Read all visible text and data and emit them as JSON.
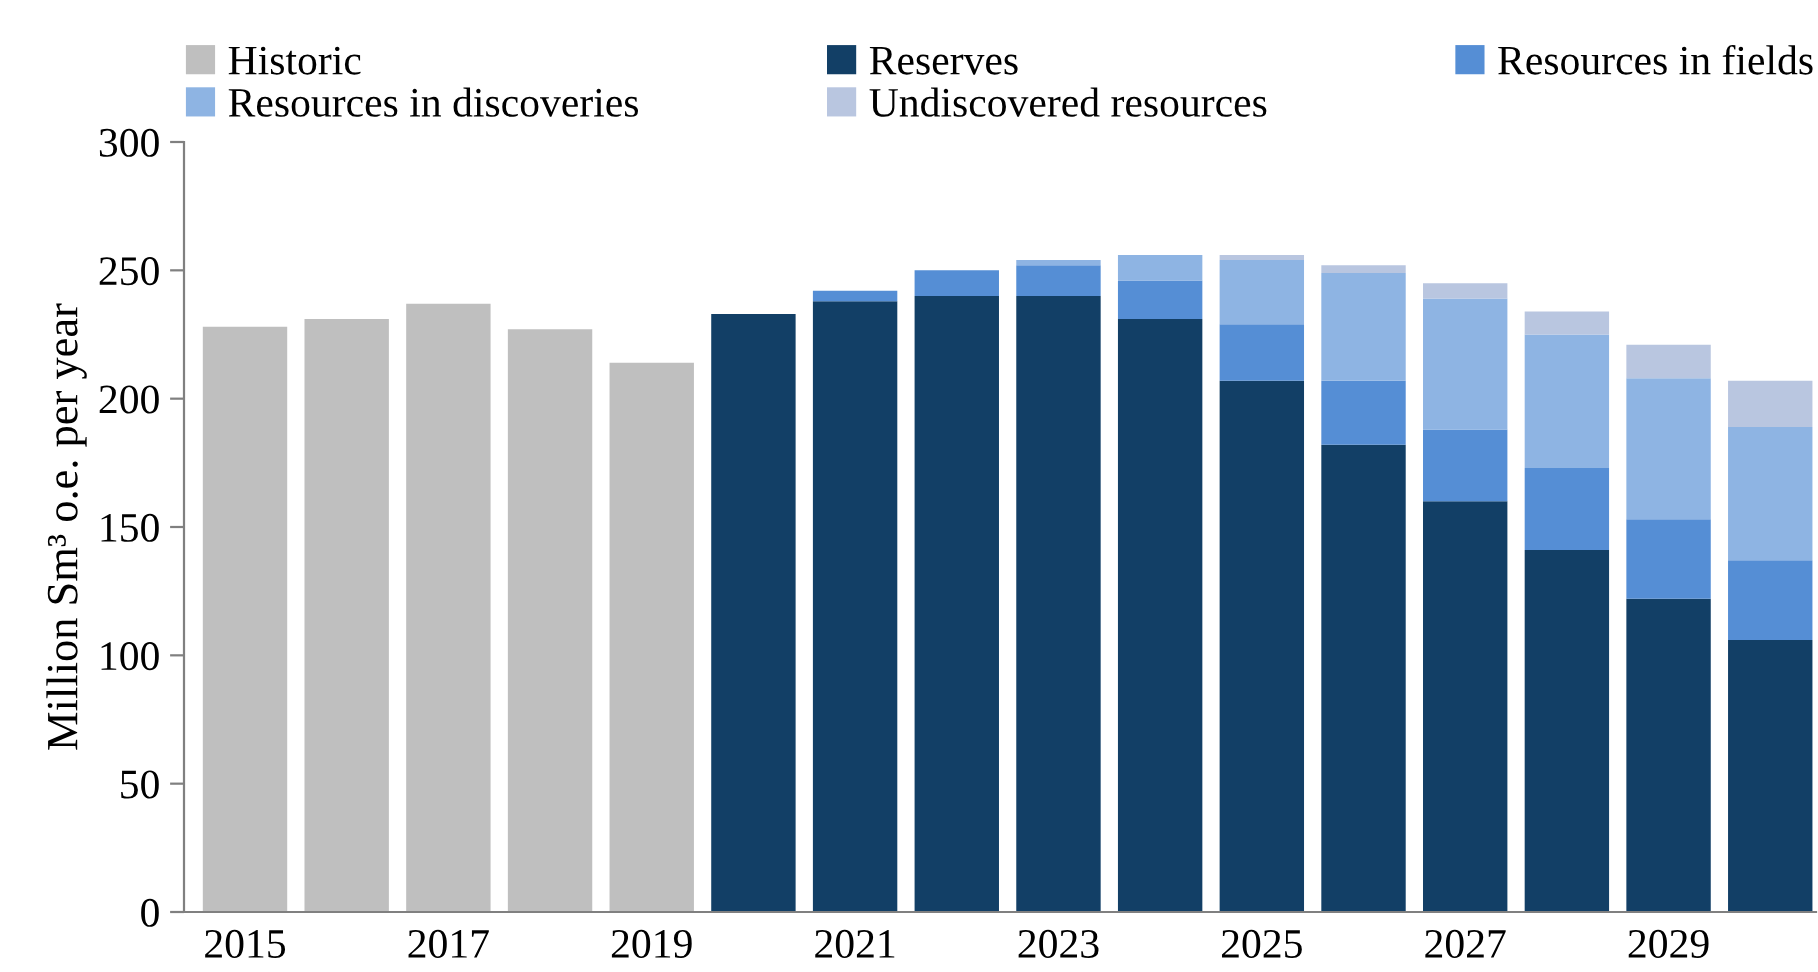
{
  "chart_data": {
    "type": "bar",
    "stacked": true,
    "ylabel": "Million Sm³ o.e. per year",
    "categories": [
      "2015",
      null,
      "2017",
      null,
      "2019",
      null,
      "2021",
      null,
      "2023",
      null,
      "2025",
      null,
      "2027",
      null,
      "2029",
      null
    ],
    "series": [
      {
        "name": "Historic",
        "color": "#bfbfbf",
        "values": [
          228,
          231,
          237,
          227,
          214,
          null,
          null,
          null,
          null,
          null,
          null,
          null,
          null,
          null,
          null,
          null
        ]
      },
      {
        "name": "Reserves",
        "color": "#123f66",
        "values": [
          null,
          null,
          null,
          null,
          null,
          233,
          238,
          240,
          240,
          231,
          207,
          182,
          160,
          141,
          122,
          106
        ]
      },
      {
        "name": "Resources in fields",
        "color": "#558ed5",
        "values": [
          null,
          null,
          null,
          null,
          null,
          null,
          4,
          10,
          12,
          15,
          22,
          25,
          28,
          32,
          31,
          31
        ]
      },
      {
        "name": "Resources in discoveries",
        "color": "#8eb4e3",
        "values": [
          null,
          null,
          null,
          null,
          null,
          null,
          null,
          null,
          2,
          10,
          25,
          42,
          51,
          52,
          55,
          52
        ]
      },
      {
        "name": "Undiscovered resources",
        "color": "#b9c6e0",
        "values": [
          null,
          null,
          null,
          null,
          null,
          null,
          null,
          null,
          null,
          null,
          2,
          3,
          6,
          9,
          13,
          18
        ]
      }
    ],
    "ylim": [
      0,
      300
    ],
    "yticks": [
      0,
      50,
      100,
      150,
      200,
      250,
      300
    ],
    "grid": false,
    "legend": "top"
  }
}
